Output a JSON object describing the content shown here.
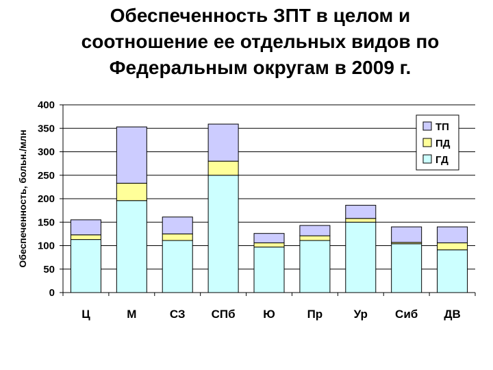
{
  "title_lines": [
    "Обеспеченность ЗПТ в целом и",
    "соотношение ее отдельных видов по",
    "Федеральным округам в 2009 г."
  ],
  "chart_data": {
    "type": "bar",
    "stacked": true,
    "title": "Обеспеченность ЗПТ в целом и соотношение ее отдельных видов по Федеральным округам в 2009 г.",
    "xlabel": "",
    "ylabel": "Обеспеченность, больн./млн",
    "ylim": [
      0,
      400
    ],
    "yticks": [
      "0",
      "50",
      "100",
      "150",
      "200",
      "250",
      "300",
      "350",
      "400"
    ],
    "categories": [
      "Ц",
      "М",
      "СЗ",
      "СПб",
      "Ю",
      "Пр",
      "Ур",
      "Сиб",
      "ДВ"
    ],
    "series": [
      {
        "name": "ГД",
        "color": "#ccffff",
        "values": [
          113,
          196,
          111,
          250,
          97,
          111,
          150,
          104,
          91
        ]
      },
      {
        "name": "ПД",
        "color": "#ffff99",
        "values": [
          10,
          37,
          14,
          30,
          9,
          10,
          8,
          3,
          15
        ]
      },
      {
        "name": "ТП",
        "color": "#ccccff",
        "values": [
          32,
          120,
          36,
          79,
          20,
          22,
          28,
          33,
          34
        ]
      }
    ],
    "legend_order": [
      "ТП",
      "ПД",
      "ГД"
    ],
    "legend_position": "top-right",
    "grid": true,
    "gridline_color": "#000000",
    "edge_color": "#000000"
  }
}
